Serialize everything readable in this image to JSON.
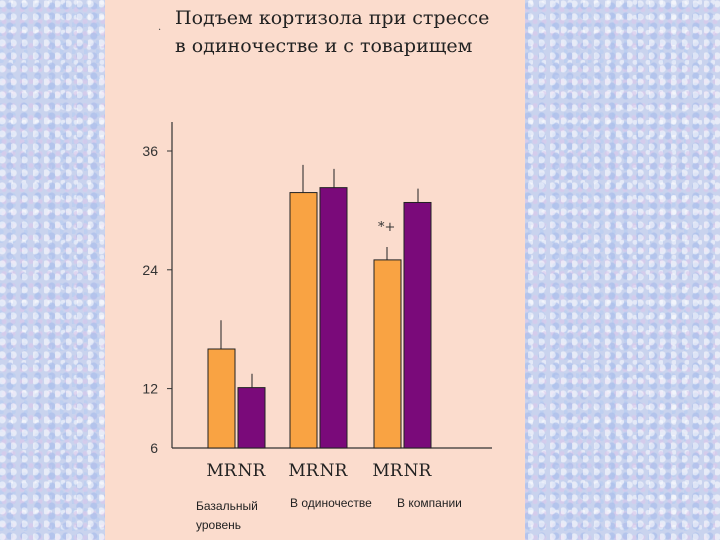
{
  "title_line1": "Подъем кортизола при стрессе",
  "title_line2": "в одиночестве и с товарищем",
  "chart_data": {
    "type": "bar",
    "title": "Подъем кортизола при стрессе в одиночестве и с товарищем",
    "ylim": [
      6,
      38
    ],
    "yticks": [
      6,
      12,
      24,
      36
    ],
    "grid": false,
    "groups": [
      "Базальный уровень",
      "В одиночестве",
      "В компании"
    ],
    "series": [
      {
        "name": "MR",
        "color": "#f9a343",
        "values": [
          16,
          31.8,
          25
        ],
        "errors": [
          2.9,
          2.8,
          1.3
        ]
      },
      {
        "name": "NR",
        "color": "#7a0a7a",
        "values": [
          12.1,
          32.3,
          30.8
        ],
        "errors": [
          1.4,
          1.9,
          1.4
        ]
      }
    ],
    "annotations": [
      {
        "text": "*+",
        "group": 2,
        "series": 0
      }
    ]
  },
  "x_labels": [
    "MR",
    "NR",
    "MR",
    "NR",
    "MR",
    "NR"
  ],
  "category_labels": [
    "Базальный\nуровень",
    "В одиночестве",
    "В компании"
  ]
}
